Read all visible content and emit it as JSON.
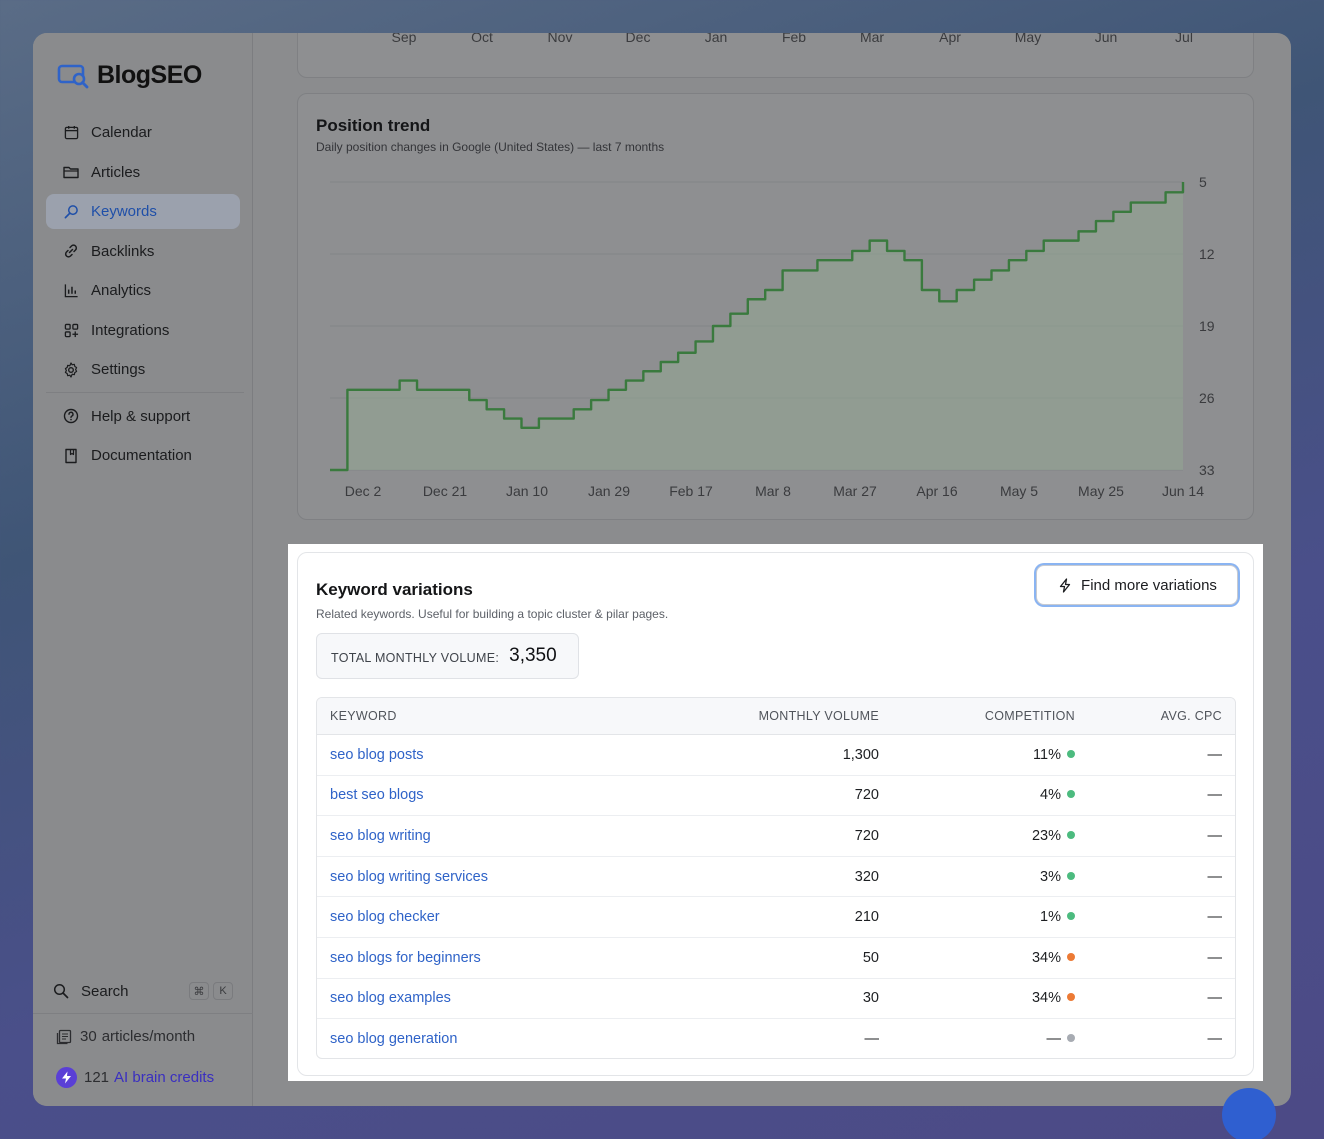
{
  "app": {
    "name": "BlogSEO"
  },
  "sidebar": {
    "items": [
      {
        "label": "Calendar",
        "icon": "calendar-icon"
      },
      {
        "label": "Articles",
        "icon": "folder-icon"
      },
      {
        "label": "Keywords",
        "icon": "search-icon",
        "active": true
      },
      {
        "label": "Backlinks",
        "icon": "link-icon"
      },
      {
        "label": "Analytics",
        "icon": "bar-chart-icon"
      },
      {
        "label": "Integrations",
        "icon": "grid-icon"
      },
      {
        "label": "Settings",
        "icon": "gear-icon"
      }
    ],
    "secondary": [
      {
        "label": "Help & support",
        "icon": "help-icon"
      },
      {
        "label": "Documentation",
        "icon": "document-icon"
      }
    ],
    "search": {
      "label": "Search",
      "shortcut_1": "⌘",
      "shortcut_2": "K"
    },
    "articles_quota": {
      "count": "30",
      "label": "articles/month"
    },
    "ai_credits": {
      "count": "121",
      "label": "AI brain credits"
    }
  },
  "top_chart": {
    "months": [
      "Sep",
      "Oct",
      "Nov",
      "Dec",
      "Jan",
      "Feb",
      "Mar",
      "Apr",
      "May",
      "Jun",
      "Jul"
    ]
  },
  "position_trend": {
    "title": "Position trend",
    "subtitle": "Daily position changes in Google (United States) — last 7 months"
  },
  "chart_data": {
    "type": "area",
    "title": "Position trend",
    "subtitle": "Daily position changes in Google (United States) — last 7 months",
    "x_tick_labels": [
      "Dec 2",
      "Dec 21",
      "Jan 10",
      "Jan 29",
      "Feb 17",
      "Mar 8",
      "Mar 27",
      "Apr 16",
      "May 5",
      "May 25",
      "Jun 14"
    ],
    "y_tick_labels": [
      "5",
      "12",
      "19",
      "26",
      "33"
    ],
    "ylim": [
      33,
      5
    ],
    "y_reversed": true,
    "grid": true,
    "line_color": "#3a7a3e",
    "fill_color": "#93a893",
    "series": [
      {
        "values": [
          33,
          25.2,
          25.2,
          25.2,
          24.3,
          25.2,
          25.2,
          25.2,
          26.2,
          27.1,
          28.0,
          28.9,
          28.0,
          28.0,
          27.1,
          26.2,
          25.2,
          24.3,
          23.4,
          22.5,
          21.6,
          20.5,
          19.0,
          17.8,
          16.4,
          15.5,
          13.6,
          13.6,
          12.6,
          12.6,
          11.7,
          10.7,
          11.7,
          12.6,
          15.5,
          16.6,
          15.5,
          14.5,
          13.6,
          12.6,
          11.7,
          10.7,
          10.7,
          9.8,
          8.8,
          7.9,
          7.0,
          7.0,
          6.0,
          5.0
        ]
      }
    ]
  },
  "keyword_variations": {
    "title": "Keyword variations",
    "subtitle": "Related keywords. Useful for building a topic cluster & pilar pages.",
    "find_button": "Find more variations",
    "total_label": "TOTAL MONTHLY VOLUME:",
    "total_value": "3,350",
    "columns": [
      "KEYWORD",
      "MONTHLY VOLUME",
      "COMPETITION",
      "AVG. CPC"
    ],
    "rows": [
      {
        "keyword": "seo blog posts",
        "volume": "1,300",
        "competition": "11%",
        "level": "low",
        "cpc": "—"
      },
      {
        "keyword": "best seo blogs",
        "volume": "720",
        "competition": "4%",
        "level": "low",
        "cpc": "—"
      },
      {
        "keyword": "seo blog writing",
        "volume": "720",
        "competition": "23%",
        "level": "low",
        "cpc": "—"
      },
      {
        "keyword": "seo blog writing services",
        "volume": "320",
        "competition": "3%",
        "level": "low",
        "cpc": "—"
      },
      {
        "keyword": "seo blog checker",
        "volume": "210",
        "competition": "1%",
        "level": "low",
        "cpc": "—"
      },
      {
        "keyword": "seo blogs for beginners",
        "volume": "50",
        "competition": "34%",
        "level": "medium",
        "cpc": "—"
      },
      {
        "keyword": "seo blog examples",
        "volume": "30",
        "competition": "34%",
        "level": "medium",
        "cpc": "—"
      },
      {
        "keyword": "seo blog generation",
        "volume": "—",
        "competition": "—",
        "level": "none",
        "cpc": "—"
      }
    ],
    "level_colors": {
      "low": "#4cbb7f",
      "medium": "#ec7a35",
      "none": "#a7abb2"
    }
  }
}
